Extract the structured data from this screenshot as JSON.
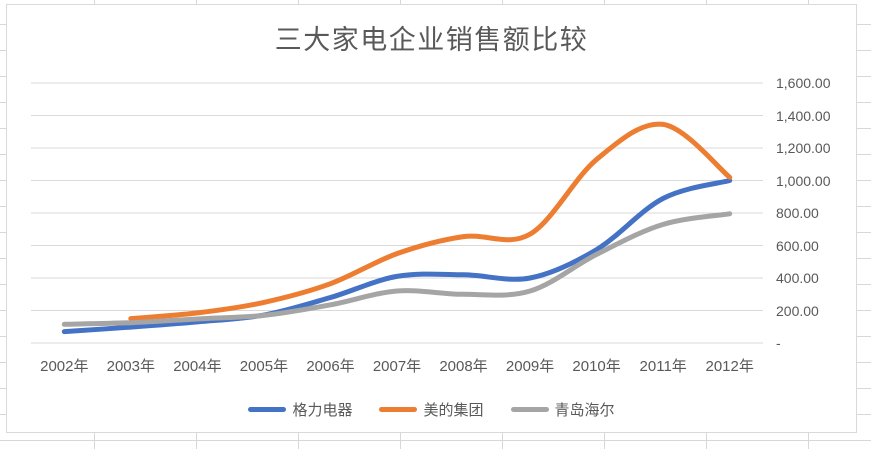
{
  "chart_data": {
    "type": "line",
    "title": "三大家电企业销售额比较",
    "categories": [
      "2002年",
      "2003年",
      "2004年",
      "2005年",
      "2006年",
      "2007年",
      "2008年",
      "2009年",
      "2010年",
      "2011年",
      "2012年"
    ],
    "series": [
      {
        "key": "gree",
        "name": "格力电器",
        "color": "#4472C4",
        "values": [
          70,
          98,
          130,
          172,
          280,
          410,
          420,
          400,
          575,
          890,
          1000
        ]
      },
      {
        "key": "midea",
        "name": "美的集团",
        "color": "#ED7D31",
        "values": [
          null,
          150,
          185,
          250,
          365,
          550,
          655,
          670,
          1130,
          1345,
          1020
        ]
      },
      {
        "key": "haier",
        "name": "青岛海尔",
        "color": "#A5A5A5",
        "values": [
          115,
          125,
          148,
          170,
          235,
          320,
          300,
          320,
          545,
          730,
          795
        ]
      }
    ],
    "y_axis": {
      "side": "right",
      "min": 0,
      "max": 1600,
      "step": 200,
      "tick_labels": [
        "-",
        "200.00",
        "400.00",
        "600.00",
        "800.00",
        "1,000.00",
        "1,200.00",
        "1,400.00",
        "1,600.00"
      ]
    },
    "smooth": true,
    "grid": true,
    "legend_position": "bottom",
    "line_width": 5,
    "colors": {
      "text": "#595959",
      "gridline": "#D9D9D9",
      "chart_border": "#D9D9D9",
      "sheet_gridline": "#D7D7D7"
    }
  }
}
